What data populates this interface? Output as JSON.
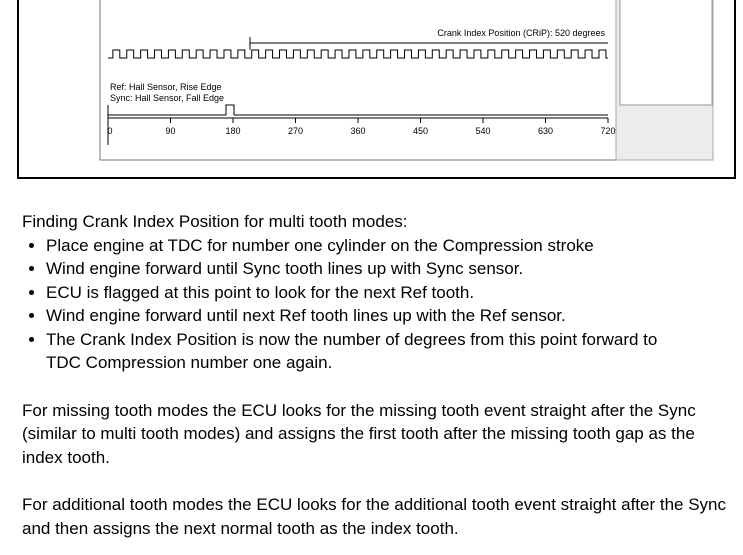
{
  "diagram": {
    "crip_label": "Crank Index Position (CRiP): 520 degrees",
    "ref_label": "Ref:  Hall Sensor, Rise Edge",
    "sync_label": "Sync: Hall Sensor, Fall Edge",
    "axis_labels": [
      "0",
      "90",
      "180",
      "270",
      "360",
      "450",
      "540",
      "630",
      "720"
    ]
  },
  "text": {
    "intro": "Finding Crank Index Position for multi tooth modes:",
    "bullets": [
      "Place engine at TDC for number one cylinder on the Compression stroke",
      "Wind engine forward until Sync tooth lines up with Sync sensor.",
      "ECU is flagged at this point to look for the next Ref tooth.",
      "Wind engine forward until next Ref tooth lines up with the Ref sensor.",
      "The Crank Index Position is now the number of degrees from this point forward to TDC Compression number one again."
    ],
    "paragraphs": [
      "For missing tooth modes the ECU looks for the missing tooth event straight after the Sync (similar to multi tooth modes) and assigns the first tooth after the missing tooth gap as the index tooth.",
      "For additional tooth modes the ECU looks for the additional tooth event straight after the Sync and then assigns the next normal tooth as the index tooth."
    ]
  }
}
